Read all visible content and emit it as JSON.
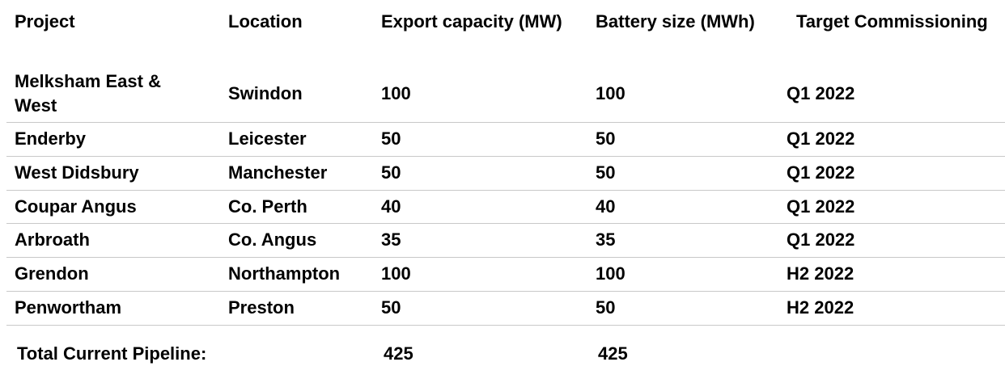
{
  "table": {
    "headers": {
      "project": "Project",
      "location": "Location",
      "export_capacity": "Export capacity (MW)",
      "battery_size": "Battery size (MWh)",
      "target_commissioning": "Target Commissioning"
    },
    "rows": [
      {
        "project": "Melksham East & West",
        "location": "Swindon",
        "export_capacity": "100",
        "battery_size": "100",
        "target_commissioning": "Q1 2022"
      },
      {
        "project": "Enderby",
        "location": "Leicester",
        "export_capacity": "50",
        "battery_size": "50",
        "target_commissioning": "Q1 2022"
      },
      {
        "project": "West Didsbury",
        "location": "Manchester",
        "export_capacity": "50",
        "battery_size": "50",
        "target_commissioning": "Q1 2022"
      },
      {
        "project": "Coupar Angus",
        "location": "Co. Perth",
        "export_capacity": "40",
        "battery_size": "40",
        "target_commissioning": "Q1 2022"
      },
      {
        "project": "Arbroath",
        "location": "Co. Angus",
        "export_capacity": "35",
        "battery_size": "35",
        "target_commissioning": "Q1 2022"
      },
      {
        "project": "Grendon",
        "location": "Northampton",
        "export_capacity": "100",
        "battery_size": "100",
        "target_commissioning": "H2 2022"
      },
      {
        "project": "Penwortham",
        "location": "Preston",
        "export_capacity": "50",
        "battery_size": "50",
        "target_commissioning": "H2 2022"
      }
    ],
    "footer": {
      "label": "Total Current Pipeline:",
      "export_capacity_total": "425",
      "battery_size_total": "425"
    }
  },
  "colors": {
    "text": "#000000",
    "rule": "#c8c8c8",
    "background": "#ffffff"
  }
}
